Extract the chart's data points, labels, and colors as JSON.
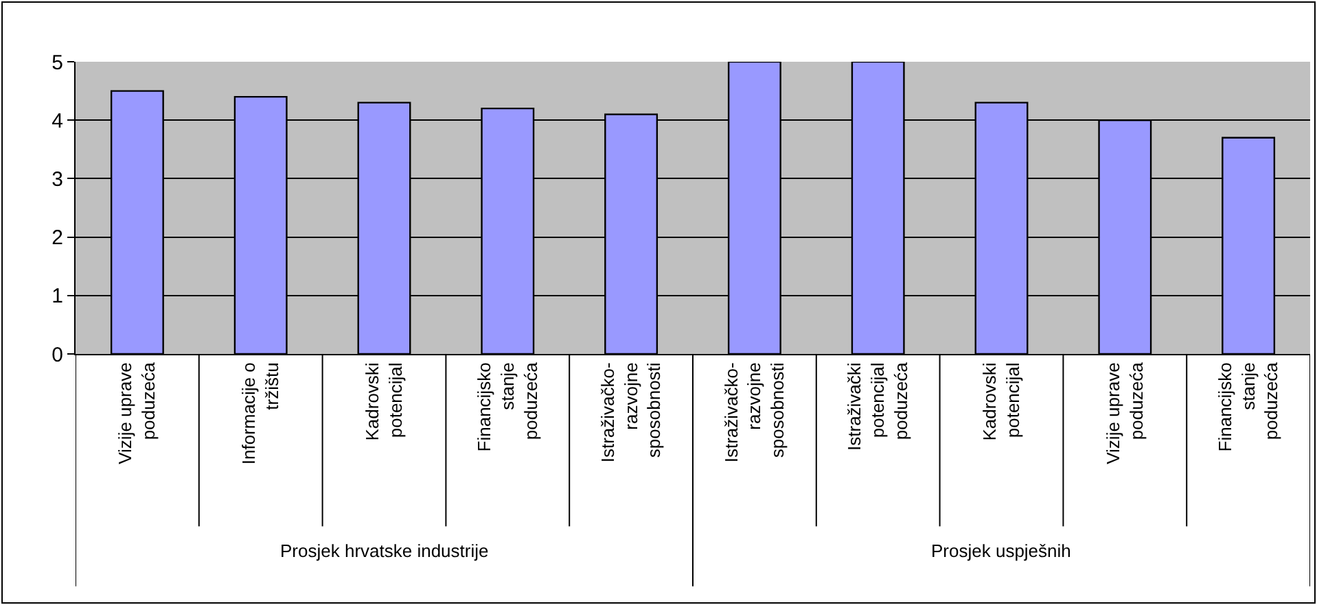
{
  "chart_data": {
    "type": "bar",
    "categories": [
      "Vizije uprave poduzeća",
      "Informacije o tržištu",
      "Kadrovski potencijal",
      "Financijsko stanje poduzeća",
      "Istraživačko-razvojne sposobnosti",
      "Istraživačko-razvojne sposobnosti",
      "Istraživački potencijal poduzeća",
      "Kadrovski potencijal",
      "Vizije uprave poduzeća",
      "Financijsko stanje poduzeća"
    ],
    "values": [
      4.5,
      4.4,
      4.3,
      4.2,
      4.1,
      5,
      5,
      4.3,
      4.0,
      3.7
    ],
    "color": "#9999ff",
    "ylim": [
      0,
      5
    ],
    "yticks": [
      0,
      1,
      2,
      3,
      4,
      5
    ],
    "grid": "y",
    "annotations": [
      "Prosjek hrvatske industrije",
      "Prosjek uspješnih"
    ]
  }
}
